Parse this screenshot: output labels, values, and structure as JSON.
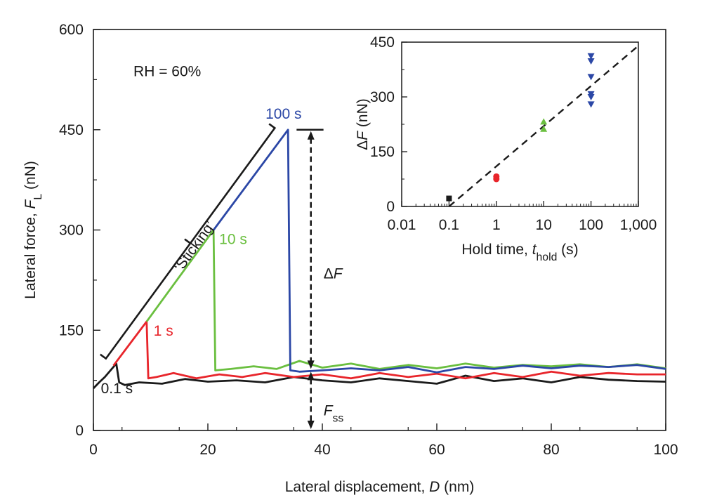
{
  "chart_data": [
    {
      "type": "line",
      "xlabel": {
        "main": "Lateral displacement, ",
        "var": "D",
        "unit": " (nm)"
      },
      "ylabel": {
        "main": "Lateral force, ",
        "var": "F",
        "sub": "L",
        "unit": " (nN)"
      },
      "xlim": [
        0,
        100
      ],
      "ylim": [
        0,
        600
      ],
      "xticks": [
        0,
        20,
        40,
        60,
        80,
        100
      ],
      "xticklabels": [
        "0",
        "20",
        "40",
        "60",
        "80",
        "100"
      ],
      "yticks": [
        0,
        150,
        300,
        450,
        600
      ],
      "yticklabels": [
        "0",
        "150",
        "300",
        "450",
        "600"
      ],
      "grid": false,
      "annotations": {
        "rh": "RH = 60%",
        "sticking": "‘Sticking’",
        "delta_f": {
          "prefix": "Δ",
          "var": "F"
        },
        "f_ss": {
          "var": "F",
          "sub": "ss"
        },
        "delta_f_x": 38,
        "delta_f_top": 450,
        "delta_f_mid": 90,
        "sticking_bracket": {
          "start": [
            1,
            115
          ],
          "end": [
            30.5,
            460
          ]
        }
      },
      "series": [
        {
          "label": "0.1 s",
          "color": "#1a1a1a",
          "peak": [
            4,
            100
          ],
          "drop_to": 68,
          "baseline": 75,
          "points": [
            [
              0,
              63
            ],
            [
              1,
              72
            ],
            [
              2,
              80
            ],
            [
              3,
              90
            ],
            [
              4,
              100
            ],
            [
              4.5,
              72
            ],
            [
              5.5,
              68
            ],
            [
              8,
              72
            ],
            [
              12,
              70
            ],
            [
              16,
              77
            ],
            [
              20,
              73
            ],
            [
              25,
              75
            ],
            [
              30,
              72
            ],
            [
              35,
              80
            ],
            [
              40,
              75
            ],
            [
              45,
              72
            ],
            [
              50,
              78
            ],
            [
              55,
              74
            ],
            [
              60,
              70
            ],
            [
              65,
              82
            ],
            [
              70,
              74
            ],
            [
              75,
              78
            ],
            [
              80,
              72
            ],
            [
              85,
              80
            ],
            [
              90,
              76
            ],
            [
              95,
              74
            ],
            [
              100,
              73
            ]
          ]
        },
        {
          "label": "1 s",
          "color": "#e8252b",
          "peak": [
            9.3,
            163
          ],
          "drop_to": 78,
          "baseline": 82,
          "points": [
            [
              3.5,
              97
            ],
            [
              9.3,
              163
            ],
            [
              9.6,
              78
            ],
            [
              11,
              80
            ],
            [
              14,
              86
            ],
            [
              18,
              78
            ],
            [
              22,
              84
            ],
            [
              26,
              80
            ],
            [
              30,
              86
            ],
            [
              35,
              80
            ],
            [
              40,
              84
            ],
            [
              45,
              78
            ],
            [
              50,
              86
            ],
            [
              55,
              80
            ],
            [
              60,
              85
            ],
            [
              65,
              78
            ],
            [
              70,
              86
            ],
            [
              75,
              80
            ],
            [
              80,
              88
            ],
            [
              85,
              82
            ],
            [
              90,
              86
            ],
            [
              95,
              84
            ],
            [
              100,
              84
            ]
          ]
        },
        {
          "label": "10 s",
          "color": "#6abf3f",
          "peak": [
            21,
            300
          ],
          "drop_to": 90,
          "baseline": 95,
          "points": [
            [
              9.3,
              163
            ],
            [
              21,
              300
            ],
            [
              21.3,
              90
            ],
            [
              24,
              92
            ],
            [
              28,
              96
            ],
            [
              32,
              92
            ],
            [
              36,
              104
            ],
            [
              40,
              94
            ],
            [
              45,
              100
            ],
            [
              50,
              92
            ],
            [
              55,
              98
            ],
            [
              60,
              93
            ],
            [
              65,
              100
            ],
            [
              70,
              94
            ],
            [
              75,
              98
            ],
            [
              80,
              96
            ],
            [
              85,
              99
            ],
            [
              90,
              95
            ],
            [
              95,
              99
            ],
            [
              100,
              93
            ]
          ]
        },
        {
          "label": "100 s",
          "color": "#2b47a6",
          "peak": [
            34,
            450
          ],
          "drop_to": 88,
          "baseline": 93,
          "points": [
            [
              21,
              300
            ],
            [
              34,
              450
            ],
            [
              34.4,
              90
            ],
            [
              36,
              88
            ],
            [
              40,
              90
            ],
            [
              45,
              93
            ],
            [
              50,
              90
            ],
            [
              55,
              95
            ],
            [
              60,
              87
            ],
            [
              65,
              95
            ],
            [
              70,
              92
            ],
            [
              75,
              97
            ],
            [
              80,
              93
            ],
            [
              85,
              97
            ],
            [
              90,
              95
            ],
            [
              95,
              98
            ],
            [
              100,
              92
            ]
          ]
        }
      ]
    },
    {
      "type": "scatter",
      "inset": true,
      "xlabel": {
        "main": "Hold time, ",
        "var": "t",
        "sub": "hold",
        "unit": " (s)"
      },
      "ylabel": {
        "prefix": "Δ",
        "var": "F",
        "unit": " (nN)"
      },
      "xscale": "log",
      "xlim": [
        0.01,
        1000
      ],
      "ylim": [
        0,
        450
      ],
      "xticks": [
        0.01,
        0.1,
        1,
        10,
        100,
        1000
      ],
      "xticklabels": [
        "0.01",
        "0.1",
        "1",
        "10",
        "100",
        "1,000"
      ],
      "yticks": [
        0,
        150,
        300,
        450
      ],
      "yticklabels": [
        "0",
        "150",
        "300",
        "450"
      ],
      "fit_line": {
        "style": "dashed",
        "color": "#1a1a1a",
        "from": [
          0.1,
          0
        ],
        "to": [
          1000,
          440
        ]
      },
      "series": [
        {
          "hold_time": 0.1,
          "color": "#1a1a1a",
          "marker": "square",
          "points": [
            [
              0.1,
              22
            ]
          ]
        },
        {
          "hold_time": 1,
          "color": "#e8252b",
          "marker": "circle",
          "points": [
            [
              1,
              75
            ],
            [
              1,
              82
            ]
          ]
        },
        {
          "hold_time": 10,
          "color": "#6abf3f",
          "marker": "triangle-up",
          "points": [
            [
              10,
              212
            ],
            [
              10,
              232
            ]
          ]
        },
        {
          "hold_time": 100,
          "color": "#2b47a6",
          "marker": "triangle-down",
          "points": [
            [
              100,
              280
            ],
            [
              100,
              300
            ],
            [
              100,
              308
            ],
            [
              100,
              355
            ],
            [
              100,
              398
            ],
            [
              100,
              412
            ]
          ]
        }
      ]
    }
  ]
}
